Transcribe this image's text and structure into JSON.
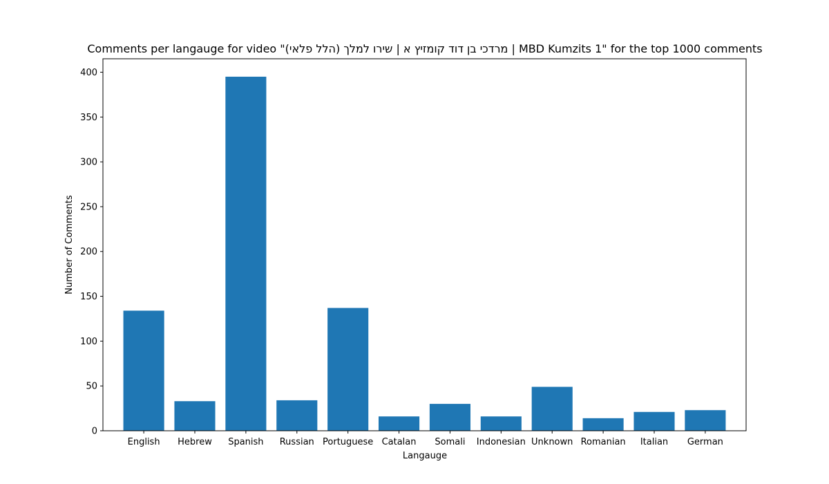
{
  "chart_data": {
    "type": "bar",
    "title": "Comments per langauge for video \"מרדכי בן דוד קומזיץ א | שירו למלך (הלל פלאי) | MBD Kumzits 1\" for the top 1000 comments",
    "xlabel": "Langauge",
    "ylabel": "Number of Comments",
    "categories": [
      "English",
      "Hebrew",
      "Spanish",
      "Russian",
      "Portuguese",
      "Catalan",
      "Somali",
      "Indonesian",
      "Unknown",
      "Romanian",
      "Italian",
      "German"
    ],
    "values": [
      134,
      33,
      395,
      34,
      137,
      16,
      30,
      16,
      49,
      14,
      21,
      23
    ],
    "ylim": [
      0,
      415
    ],
    "yticks": [
      0,
      50,
      100,
      150,
      200,
      250,
      300,
      350,
      400
    ],
    "bar_color": "#1f77b4",
    "grid": false
  }
}
